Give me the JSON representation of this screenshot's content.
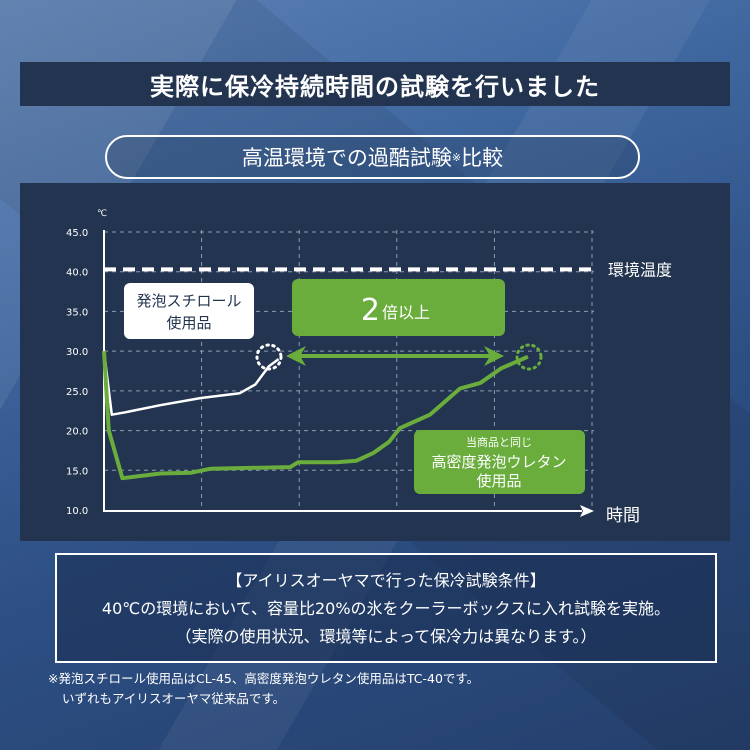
{
  "header": {
    "title": "実際に保冷持続時間の試験を行いました",
    "subtitle": "高温環境での過酷試験",
    "subtitle_mark": "※",
    "subtitle_end": "比較"
  },
  "chart_data": {
    "type": "line",
    "ylabel": "℃",
    "xlabel": "時間",
    "ylim": [
      10,
      45
    ],
    "yticks": [
      "45.0",
      "40.0",
      "35.0",
      "30.0",
      "25.0",
      "20.0",
      "15.0",
      "10.0"
    ],
    "grid": true,
    "reference_line": {
      "value": 40.3,
      "label": "環境温度",
      "style": "dashed",
      "color": "#ffffff"
    },
    "series": [
      {
        "name": "発泡スチロール使用品",
        "color": "#ffffff",
        "x": [
          0,
          0.08,
          0.22,
          0.58,
          1.0,
          1.4,
          1.56,
          1.7,
          1.8
        ],
        "y": [
          30,
          22,
          22.3,
          23.2,
          24.1,
          24.7,
          25.8,
          28.1,
          29
        ]
      },
      {
        "name": "当商品と同じ 高密度発泡ウレタン使用品",
        "color": "#6aad3d",
        "x": [
          0,
          0.05,
          0.19,
          0.58,
          0.9,
          1.1,
          1.92,
          2.0,
          2.4,
          2.6,
          2.78,
          2.94,
          3.05,
          3.36,
          3.67,
          3.88,
          4.09,
          4.37
        ],
        "y": [
          30,
          20,
          14,
          14.6,
          14.7,
          15.2,
          15.4,
          16,
          16,
          16.2,
          17.2,
          18.6,
          20.3,
          22,
          25.3,
          26,
          27.8,
          29.3
        ]
      }
    ],
    "annotations": {
      "styrofoam_label_line1": "発泡スチロール",
      "styrofoam_label_line2": "使用品",
      "comparison": "2",
      "comparison_suffix": "倍以上",
      "urethan_label_line0": "当商品と同じ",
      "urethan_label_line1": "高密度発泡ウレタン",
      "urethan_label_line2": "使用品"
    },
    "colors": {
      "accent": "#6aad3d",
      "panel": "#22344f"
    }
  },
  "conditions": {
    "line1": "【アイリスオーヤマで行った保冷試験条件】",
    "line2": "40℃の環境において、容量比20%の氷をクーラーボックスに入れ試験を実施。",
    "line3": "（実際の使用状況、環境等によって保冷力は異なります。）"
  },
  "footnote": {
    "line1": "※発泡スチロール使用品はCL-45、高密度発泡ウレタン使用品はTC-40です。",
    "line2": "いずれもアイリスオーヤマ従来品です。"
  }
}
